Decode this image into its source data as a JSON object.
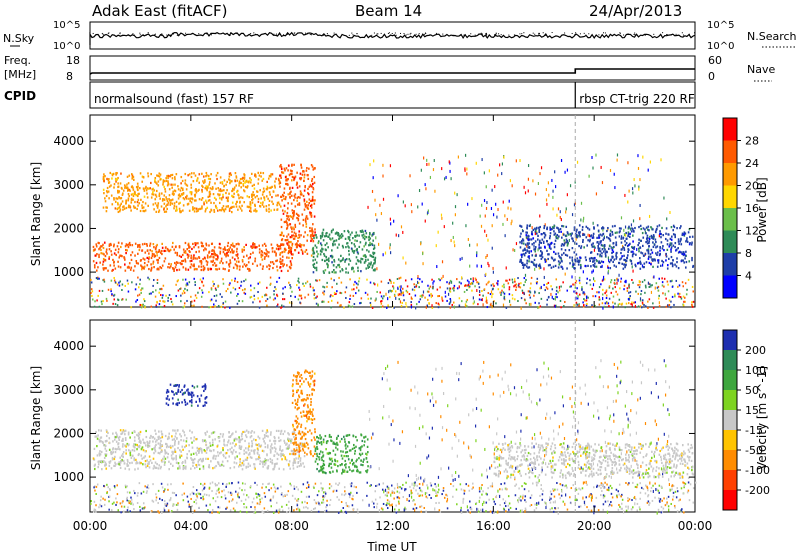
{
  "header": {
    "station": "Adak East (fitACF)",
    "beam": "Beam 14",
    "date": "24/Apr/2013"
  },
  "noise_panel": {
    "left_label": "N.Sky",
    "right_label": "N.Search",
    "left_ticks": [
      "10^5",
      "10^0"
    ],
    "right_ticks": [
      "10^5",
      "10^0"
    ]
  },
  "freq_panel": {
    "left_label_line1": "Freq.",
    "left_label_line2": "[MHz]",
    "left_ticks": [
      "18",
      "8"
    ],
    "right_label": "Nave",
    "right_ticks": [
      "60",
      "0"
    ]
  },
  "cpid_panel": {
    "label": "CPID",
    "segments": [
      {
        "name": "normalsound (fast) 157 RF",
        "start_hour": 0.0,
        "end_hour": 19.25
      },
      {
        "name": "rbsp CT-trig 220 RF",
        "start_hour": 19.25,
        "end_hour": 24.0
      }
    ]
  },
  "time_axis": {
    "label": "Time UT",
    "ticks": [
      "00:00",
      "04:00",
      "08:00",
      "12:00",
      "16:00",
      "20:00",
      "00:00"
    ],
    "range_hours": [
      0,
      24
    ]
  },
  "colorbars": {
    "power": {
      "label": "Power [dB]",
      "ticks": [
        "28",
        "24",
        "20",
        "16",
        "12",
        "8",
        "4"
      ],
      "colors": [
        "#ff0000",
        "#ff5a00",
        "#ff9a00",
        "#ffd700",
        "#6bbf4a",
        "#2e8b57",
        "#1e3ea8",
        "#0000ff"
      ]
    },
    "velocity": {
      "label": "Velocity [m s^-1]",
      "ticks": [
        "200",
        "100",
        "50",
        "15",
        "-15",
        "-50",
        "-100",
        "-200"
      ],
      "colors": [
        "#1e2fb0",
        "#2e8b57",
        "#3ea63e",
        "#7ed321",
        "#c8c8c8",
        "#ffc400",
        "#ff8c00",
        "#ff4000",
        "#ff0000"
      ]
    }
  },
  "chart_data": [
    {
      "type": "heatmap",
      "title": "",
      "ylabel": "Slant Range [km]",
      "xlabel": "",
      "yticks": [
        "4000",
        "3000",
        "2000",
        "1000"
      ],
      "ylim": [
        200,
        4600
      ],
      "xlim_hours": [
        0,
        24
      ],
      "parameter": "power",
      "series": [
        {
          "name": "",
          "start_hour": 0.1,
          "end_hour": 8.0,
          "range_km": [
            1050,
            1700
          ],
          "level": 1
        },
        {
          "name": "",
          "start_hour": 0.5,
          "end_hour": 7.5,
          "range_km": [
            2400,
            3300
          ],
          "level": 2
        },
        {
          "name": "",
          "start_hour": 7.5,
          "end_hour": 8.9,
          "range_km": [
            1400,
            3500
          ],
          "level": 1
        },
        {
          "name": "",
          "start_hour": 8.8,
          "end_hour": 11.3,
          "range_km": [
            1000,
            2000
          ],
          "level": 5
        },
        {
          "name": "",
          "start_hour": 17.0,
          "end_hour": 23.9,
          "range_km": [
            1100,
            2100
          ],
          "level": 6
        }
      ]
    },
    {
      "type": "heatmap",
      "title": "",
      "ylabel": "Slant Range [km]",
      "xlabel": "Time UT",
      "yticks": [
        "4000",
        "3000",
        "2000",
        "1000"
      ],
      "ylim": [
        200,
        4600
      ],
      "xlim_hours": [
        0,
        24
      ],
      "parameter": "velocity",
      "series": [
        {
          "name": "",
          "start_hour": 0.1,
          "end_hour": 8.5,
          "range_km": [
            1200,
            2100
          ],
          "level": 4
        },
        {
          "name": "",
          "start_hour": 3.0,
          "end_hour": 4.6,
          "range_km": [
            2650,
            3150
          ],
          "level": 0
        },
        {
          "name": "",
          "start_hour": 8.0,
          "end_hour": 8.9,
          "range_km": [
            1500,
            3500
          ],
          "level": 6
        },
        {
          "name": "",
          "start_hour": 8.9,
          "end_hour": 11.0,
          "range_km": [
            1100,
            2000
          ],
          "level": 2
        },
        {
          "name": "",
          "start_hour": 16.0,
          "end_hour": 23.9,
          "range_km": [
            1000,
            1800
          ],
          "level": 4
        }
      ]
    }
  ]
}
